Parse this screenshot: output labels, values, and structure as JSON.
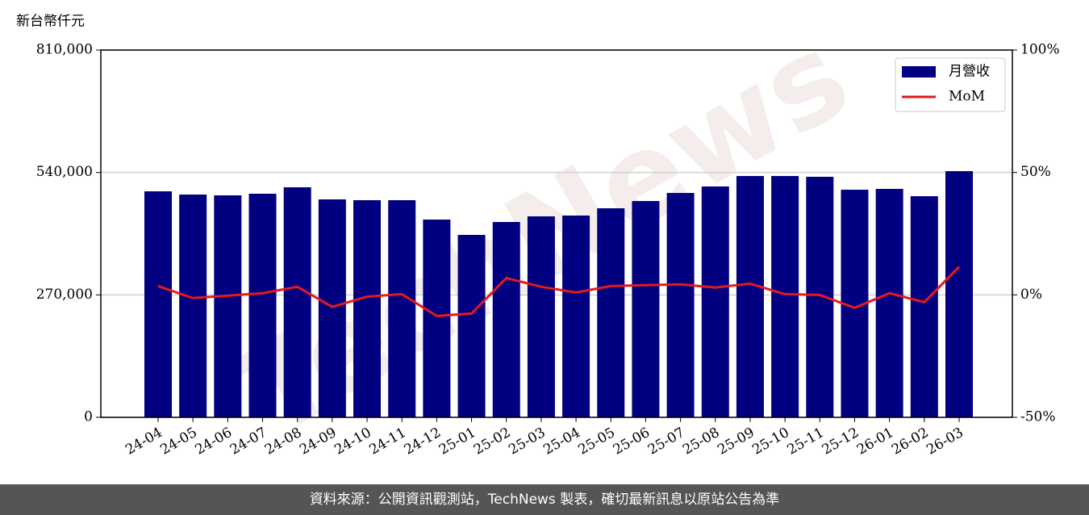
{
  "chart_data": {
    "type": "bar",
    "y_label": "新台幣仟元",
    "watermark": "TechNews",
    "categories": [
      "24-04",
      "24-05",
      "24-06",
      "24-07",
      "24-08",
      "24-09",
      "24-10",
      "24-11",
      "24-12",
      "25-01",
      "25-02",
      "25-03",
      "25-04",
      "25-05",
      "25-06",
      "25-07",
      "25-08",
      "25-09",
      "25-10",
      "25-11",
      "25-12",
      "26-01",
      "26-02",
      "26-03"
    ],
    "series": [
      {
        "name": "月營收",
        "type": "bar",
        "color": "#000080",
        "values": [
          498400,
          491300,
          489500,
          493100,
          507300,
          480600,
          478900,
          478900,
          436100,
          402300,
          430800,
          443200,
          445000,
          461000,
          477000,
          494800,
          509100,
          532200,
          532200,
          530500,
          502000,
          503800,
          487700,
          542900
        ]
      },
      {
        "name": "MoM",
        "type": "line",
        "axis": "y2",
        "color": "#e31a1c",
        "values": [
          3.6,
          -1.3,
          -0.3,
          0.7,
          3.3,
          -4.9,
          -0.7,
          0.3,
          -8.6,
          -7.6,
          6.9,
          3.3,
          1.0,
          3.6,
          4.0,
          4.3,
          3.0,
          4.6,
          0.3,
          0,
          -5.3,
          0.7,
          -3.0,
          11.5
        ]
      }
    ],
    "ylim": [
      0,
      810000
    ],
    "yticks": [
      0,
      {
        "value": 270000,
        "label": "270,000"
      },
      {
        "value": 540000,
        "label": "540,000"
      },
      {
        "value": 810000,
        "label": "810,000"
      }
    ],
    "y2lim": [
      -50,
      100
    ],
    "y2ticks": [
      {
        "value": -50,
        "label": "-50%"
      },
      {
        "value": 0,
        "label": "0%"
      },
      {
        "value": 50,
        "label": "50%"
      },
      {
        "value": 100,
        "label": "100%"
      }
    ],
    "grid": true,
    "legend": "upper right"
  },
  "footer": "資料來源：公開資訊觀測站，TechNews 製表，確切最新訊息以原站公告為準"
}
